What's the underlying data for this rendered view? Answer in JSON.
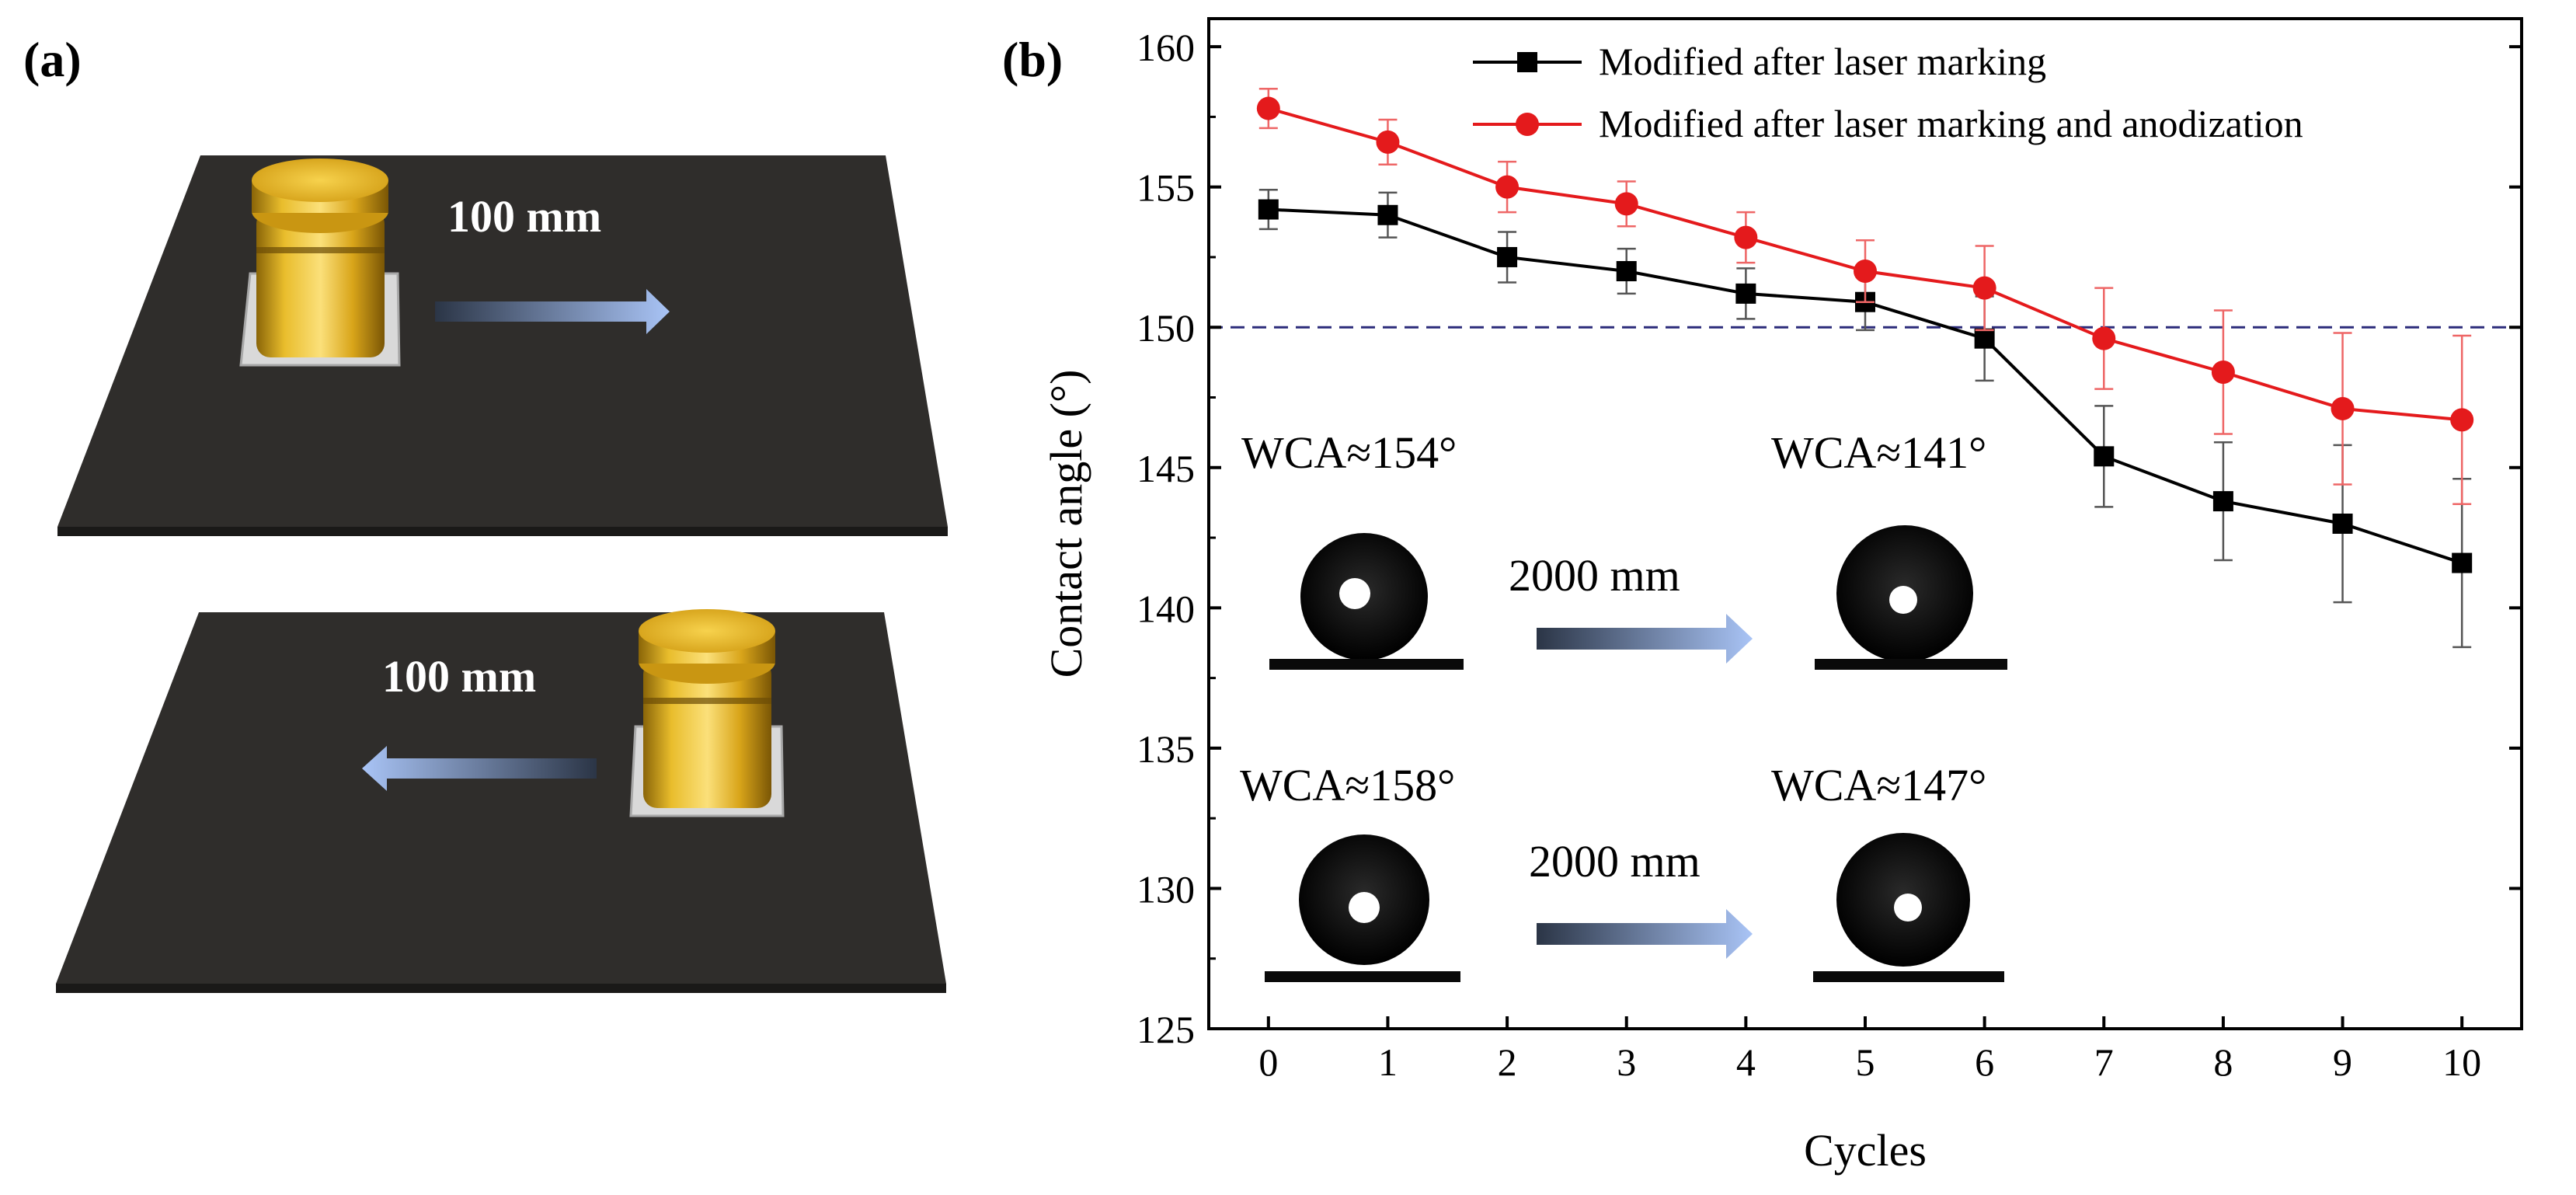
{
  "panel_a": {
    "label": "(a)",
    "top_distance": "100 mm",
    "bottom_distance": "100 mm",
    "colors": {
      "plate": "#2f2d2b",
      "weight": "#e2b21c",
      "arrow": "#9db7ee",
      "base": "#d6d6d6"
    }
  },
  "panel_b": {
    "label": "(b)",
    "insets": [
      {
        "before": "WCA≈154°",
        "after": "WCA≈141°",
        "distance": "2000 mm"
      },
      {
        "before": "WCA≈158°",
        "after": "WCA≈147°",
        "distance": "2000 mm"
      }
    ]
  },
  "chart_data": {
    "type": "line",
    "title": "",
    "xlabel": "Cycles",
    "ylabel": "Contact angle (°)",
    "x": [
      0,
      1,
      2,
      3,
      4,
      5,
      6,
      7,
      8,
      9,
      10
    ],
    "xticks": [
      "0",
      "1",
      "2",
      "3",
      "4",
      "5",
      "6",
      "7",
      "8",
      "9",
      "10"
    ],
    "xlim": [
      -0.5,
      10.5
    ],
    "yticks": [
      "125",
      "130",
      "135",
      "140",
      "145",
      "150",
      "155",
      "160"
    ],
    "ylim": [
      125,
      161
    ],
    "grid": false,
    "legend_position": "top-right",
    "reference_line": {
      "y": 150,
      "style": "dashed",
      "color": "#2b2b7a"
    },
    "series": [
      {
        "name": "Modified after laser marking",
        "color": "#000000",
        "marker": "square",
        "values": [
          154.2,
          154.0,
          152.5,
          152.0,
          151.2,
          150.9,
          149.6,
          145.4,
          143.8,
          143.0,
          141.6
        ],
        "errors": [
          0.7,
          0.8,
          0.9,
          0.8,
          0.9,
          1.0,
          1.5,
          1.8,
          2.1,
          2.8,
          3.0
        ]
      },
      {
        "name": "Modified after laser marking and anodization",
        "color": "#e41a1c",
        "marker": "circle",
        "values": [
          157.8,
          156.6,
          155.0,
          154.4,
          153.2,
          152.0,
          151.4,
          149.6,
          148.4,
          147.1,
          146.7
        ],
        "errors": [
          0.7,
          0.8,
          0.9,
          0.8,
          0.9,
          1.1,
          1.5,
          1.8,
          2.2,
          2.7,
          3.0
        ]
      }
    ]
  }
}
